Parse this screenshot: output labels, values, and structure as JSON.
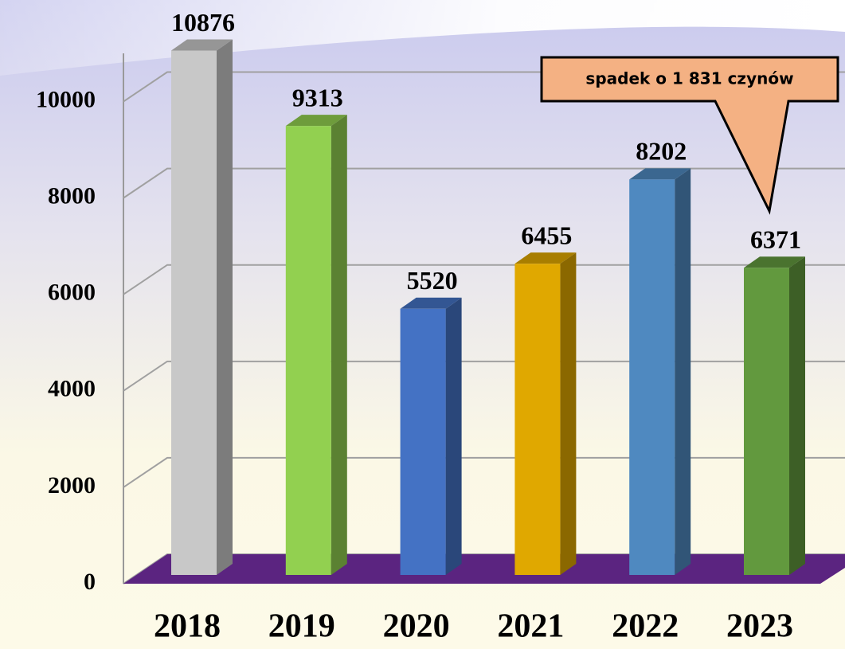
{
  "chart_data": {
    "type": "bar3d",
    "categories": [
      "2018",
      "2019",
      "2020",
      "2021",
      "2022",
      "2023"
    ],
    "values": [
      10876,
      9313,
      5520,
      6455,
      8202,
      6371
    ],
    "colors": [
      "#c8c8c8",
      "#92d050",
      "#4472c4",
      "#e0a800",
      "#4f89c0",
      "#62993e"
    ],
    "floor_color": "#5b2480",
    "ylim": [
      0,
      11000
    ],
    "yticks": [
      0,
      2000,
      4000,
      6000,
      8000,
      10000
    ],
    "grid": true,
    "annotation": "spadek o 1 831 czynów"
  }
}
